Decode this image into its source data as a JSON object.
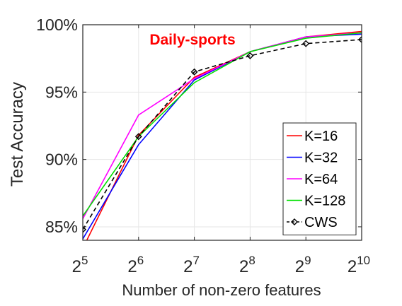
{
  "chart_data": {
    "type": "line",
    "title": "Daily-sports",
    "title_color": "#ff0000",
    "xlabel": "Number of non-zero features",
    "ylabel": "Test Accuracy",
    "x": [
      5,
      6,
      7,
      8,
      9,
      10
    ],
    "x_ticks": [
      {
        "base": "2",
        "exp": "5"
      },
      {
        "base": "2",
        "exp": "6"
      },
      {
        "base": "2",
        "exp": "7"
      },
      {
        "base": "2",
        "exp": "8"
      },
      {
        "base": "2",
        "exp": "9"
      },
      {
        "base": "2",
        "exp": "10"
      }
    ],
    "y_ticks": [
      "85%",
      "90%",
      "95%",
      "100%"
    ],
    "y_tick_values": [
      85,
      90,
      95,
      100
    ],
    "xlim": [
      5,
      10
    ],
    "ylim": [
      84,
      100
    ],
    "grid": true,
    "legend_position": "bottom-right",
    "series": [
      {
        "name": "K=16",
        "color": "#ff0000",
        "dashed": false,
        "marker": "none",
        "values": [
          83.4,
          91.8,
          96.1,
          98.0,
          99.1,
          99.5
        ]
      },
      {
        "name": "K=32",
        "color": "#0000ff",
        "dashed": false,
        "marker": "none",
        "values": [
          84.1,
          91.1,
          95.9,
          98.0,
          99.1,
          99.3
        ]
      },
      {
        "name": "K=64",
        "color": "#ff00ff",
        "dashed": false,
        "marker": "none",
        "values": [
          85.6,
          93.3,
          96.0,
          98.0,
          99.1,
          99.4
        ]
      },
      {
        "name": "K=128",
        "color": "#00e000",
        "dashed": false,
        "marker": "none",
        "values": [
          85.8,
          91.7,
          95.7,
          98.0,
          99.0,
          99.4
        ]
      },
      {
        "name": "CWS",
        "color": "#000000",
        "dashed": true,
        "marker": "diamond",
        "values": [
          84.8,
          91.7,
          96.5,
          97.7,
          98.6,
          98.9
        ]
      }
    ]
  }
}
